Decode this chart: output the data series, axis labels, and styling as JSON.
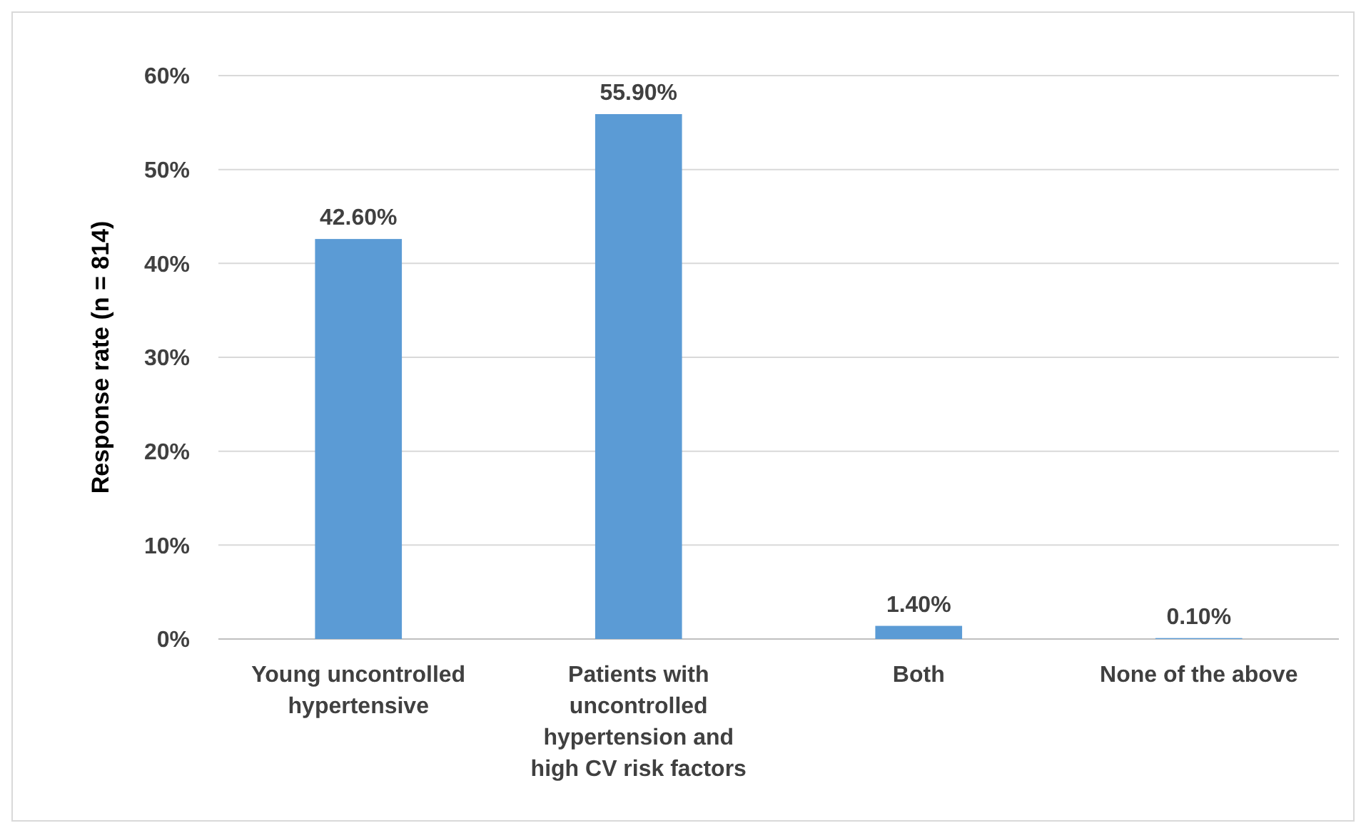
{
  "chart_data": {
    "type": "bar",
    "ylabel": "Response rate (n = 814)",
    "categories": [
      "Young uncontrolled hypertensive",
      "Patients with uncontrolled hypertension and high CV risk factors",
      "Both",
      "None of the above"
    ],
    "values": [
      42.6,
      55.9,
      1.4,
      0.1
    ],
    "value_labels": [
      "42.60%",
      "55.90%",
      "1.40%",
      "0.10%"
    ],
    "color": "#5b9bd5",
    "ylim": [
      0,
      60
    ],
    "yticks": [
      {
        "value": 0,
        "label": "0%"
      },
      {
        "value": 10,
        "label": "10%"
      },
      {
        "value": 20,
        "label": "20%"
      },
      {
        "value": 30,
        "label": "30%"
      },
      {
        "value": 40,
        "label": "40%"
      },
      {
        "value": 50,
        "label": "50%"
      },
      {
        "value": 60,
        "label": "60%"
      }
    ],
    "grid": "y"
  }
}
